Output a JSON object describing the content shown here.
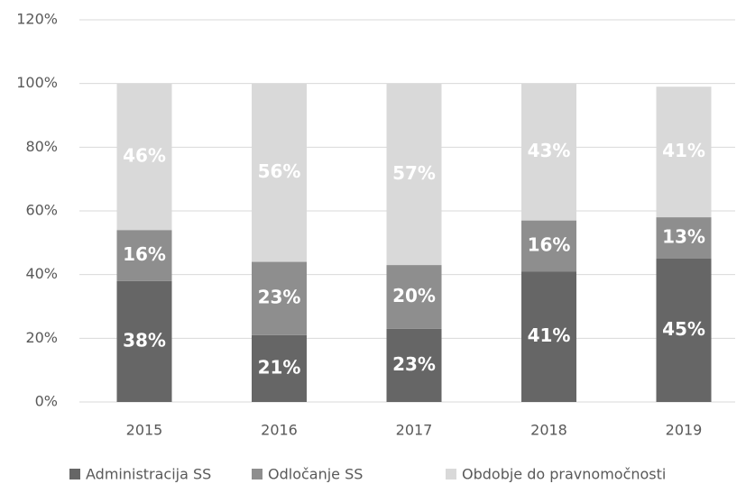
{
  "chart_data": {
    "type": "stacked_bar",
    "categories": [
      "2015",
      "2016",
      "2017",
      "2018",
      "2019"
    ],
    "series": [
      {
        "name": "Administracija SS",
        "color": "#666666",
        "values": [
          38,
          21,
          23,
          41,
          45
        ],
        "value_labels": [
          "38%",
          "21%",
          "23%",
          "41%",
          "45%"
        ]
      },
      {
        "name": "Odločanje SS",
        "color": "#8e8e8e",
        "values": [
          16,
          23,
          20,
          16,
          13
        ],
        "value_labels": [
          "16%",
          "23%",
          "20%",
          "16%",
          "13%"
        ]
      },
      {
        "name": "Obdobje do pravnomočnosti",
        "color": "#d9d9d9",
        "values": [
          46,
          56,
          57,
          43,
          41
        ],
        "value_labels": [
          "46%",
          "56%",
          "57%",
          "43%",
          "41%"
        ]
      }
    ],
    "ylim": [
      0,
      120
    ],
    "yticks": [
      {
        "value": 0,
        "label": "0%"
      },
      {
        "value": 20,
        "label": "20%"
      },
      {
        "value": 40,
        "label": "40%"
      },
      {
        "value": 60,
        "label": "60%"
      },
      {
        "value": 80,
        "label": "80%"
      },
      {
        "value": 100,
        "label": "100%"
      },
      {
        "value": 120,
        "label": "120%"
      }
    ],
    "grid": true,
    "legend": "bottom"
  }
}
